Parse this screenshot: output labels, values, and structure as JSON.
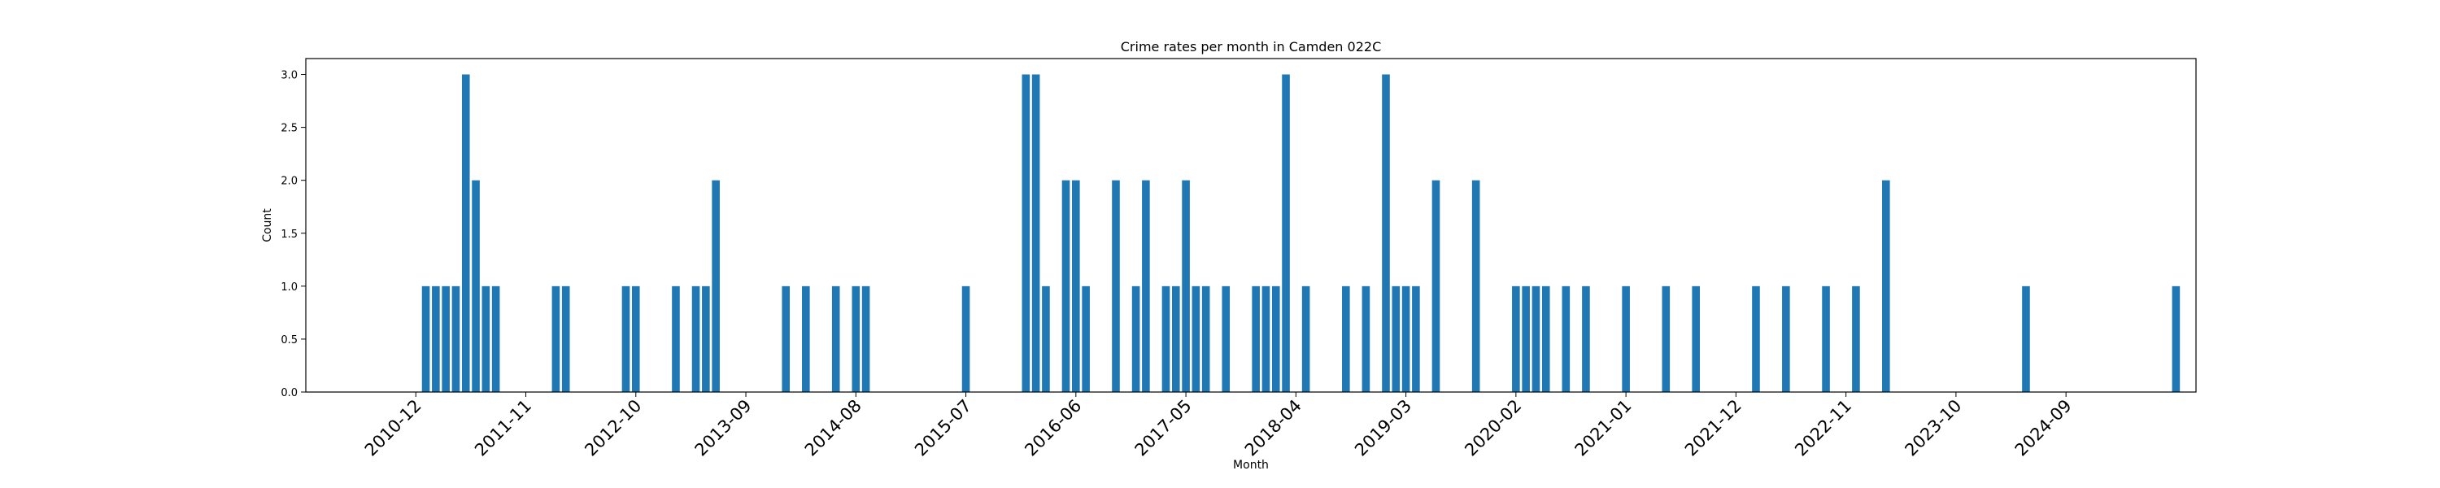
{
  "chart_data": {
    "type": "bar",
    "title": "Crime rates per month in Camden 022C",
    "xlabel": "Month",
    "ylabel": "Count",
    "ylim": [
      0,
      3.15
    ],
    "yticks": [
      0.0,
      0.5,
      1.0,
      1.5,
      2.0,
      2.5,
      3.0
    ],
    "ytick_labels": [
      "0.0",
      "0.5",
      "1.0",
      "1.5",
      "2.0",
      "2.5",
      "3.0"
    ],
    "xticks": [
      "2010-12",
      "2011-11",
      "2012-10",
      "2013-09",
      "2014-08",
      "2015-07",
      "2016-06",
      "2017-05",
      "2018-04",
      "2019-03",
      "2020-02",
      "2021-01",
      "2021-12",
      "2022-11",
      "2023-10",
      "2024-09"
    ],
    "xlim": [
      "2010-01",
      "2025-10"
    ],
    "grid": false,
    "bar_color": "#1f77b4",
    "series": [
      {
        "x": [
          "2011-01",
          "2011-02",
          "2011-03",
          "2011-04",
          "2011-05",
          "2011-06",
          "2011-07",
          "2011-08",
          "2012-02",
          "2012-03",
          "2012-09",
          "2012-10",
          "2013-02",
          "2013-04",
          "2013-05",
          "2013-06",
          "2014-01",
          "2014-03",
          "2014-06",
          "2014-08",
          "2014-09",
          "2015-07",
          "2016-01",
          "2016-02",
          "2016-03",
          "2016-05",
          "2016-06",
          "2016-07",
          "2016-10",
          "2016-12",
          "2017-01",
          "2017-03",
          "2017-04",
          "2017-05",
          "2017-06",
          "2017-07",
          "2017-09",
          "2017-12",
          "2018-01",
          "2018-02",
          "2018-03",
          "2018-05",
          "2018-09",
          "2018-11",
          "2019-01",
          "2019-02",
          "2019-03",
          "2019-04",
          "2019-06",
          "2019-10",
          "2020-02",
          "2020-03",
          "2020-04",
          "2020-05",
          "2020-07",
          "2020-09",
          "2021-01",
          "2021-05",
          "2021-08",
          "2022-02",
          "2022-05",
          "2022-09",
          "2022-12",
          "2023-03",
          "2024-05",
          "2025-08"
        ],
        "values": [
          1,
          1,
          1,
          1,
          3,
          2,
          1,
          1,
          1,
          1,
          1,
          1,
          1,
          1,
          1,
          2,
          1,
          1,
          1,
          1,
          1,
          1,
          3,
          3,
          1,
          2,
          2,
          1,
          2,
          1,
          2,
          1,
          1,
          2,
          1,
          1,
          1,
          1,
          1,
          1,
          3,
          1,
          1,
          1,
          3,
          1,
          1,
          1,
          2,
          2,
          1,
          1,
          1,
          1,
          1,
          1,
          1,
          1,
          1,
          1,
          1,
          1,
          1,
          2,
          1,
          1
        ]
      }
    ]
  }
}
